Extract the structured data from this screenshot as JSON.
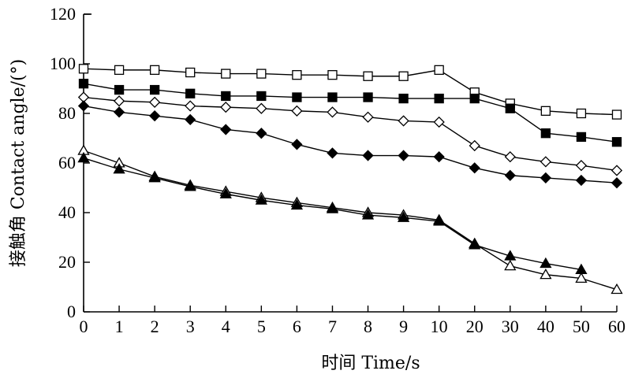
{
  "chart_data": {
    "type": "line",
    "title": "",
    "xlabel": "时间 Time/s",
    "ylabel": "接触角 Contact angle/(°)",
    "categories": [
      "0",
      "1",
      "2",
      "3",
      "4",
      "5",
      "6",
      "7",
      "8",
      "9",
      "10",
      "20",
      "30",
      "40",
      "50",
      "60"
    ],
    "ylim": [
      0,
      120
    ],
    "yticks": [
      0,
      20,
      40,
      60,
      80,
      100,
      120
    ],
    "grid": false,
    "legend": "none",
    "series": [
      {
        "marker": "square-open",
        "values": [
          98,
          97.5,
          97.5,
          96.5,
          96,
          96,
          95.5,
          95.5,
          95,
          95,
          97.5,
          88.5,
          84,
          81,
          80,
          79.5
        ]
      },
      {
        "marker": "square-filled",
        "values": [
          92,
          89.5,
          89.5,
          88,
          87,
          87,
          86.5,
          86.5,
          86.5,
          86,
          86,
          86,
          82,
          72,
          70.5,
          68.5
        ]
      },
      {
        "marker": "diamond-open",
        "values": [
          86.5,
          85,
          84.5,
          83,
          82.5,
          82,
          81,
          80.5,
          78.5,
          77,
          76.5,
          67,
          62.5,
          60.5,
          59,
          57
        ]
      },
      {
        "marker": "diamond-filled",
        "values": [
          83,
          80.5,
          79,
          77.5,
          73.5,
          72,
          67.5,
          64,
          63,
          63,
          62.5,
          58,
          55,
          54,
          53,
          52
        ]
      },
      {
        "marker": "triangle-open",
        "values": [
          65,
          60,
          54.5,
          51,
          48.5,
          46,
          44,
          42,
          40,
          39,
          37,
          27.5,
          18.5,
          15,
          13.5,
          9
        ]
      },
      {
        "marker": "triangle-filled",
        "values": [
          62,
          57.5,
          54,
          50.5,
          47.5,
          45,
          43,
          41.5,
          39,
          38,
          36.5,
          27,
          22.5,
          19.5,
          17,
          null
        ]
      }
    ]
  }
}
